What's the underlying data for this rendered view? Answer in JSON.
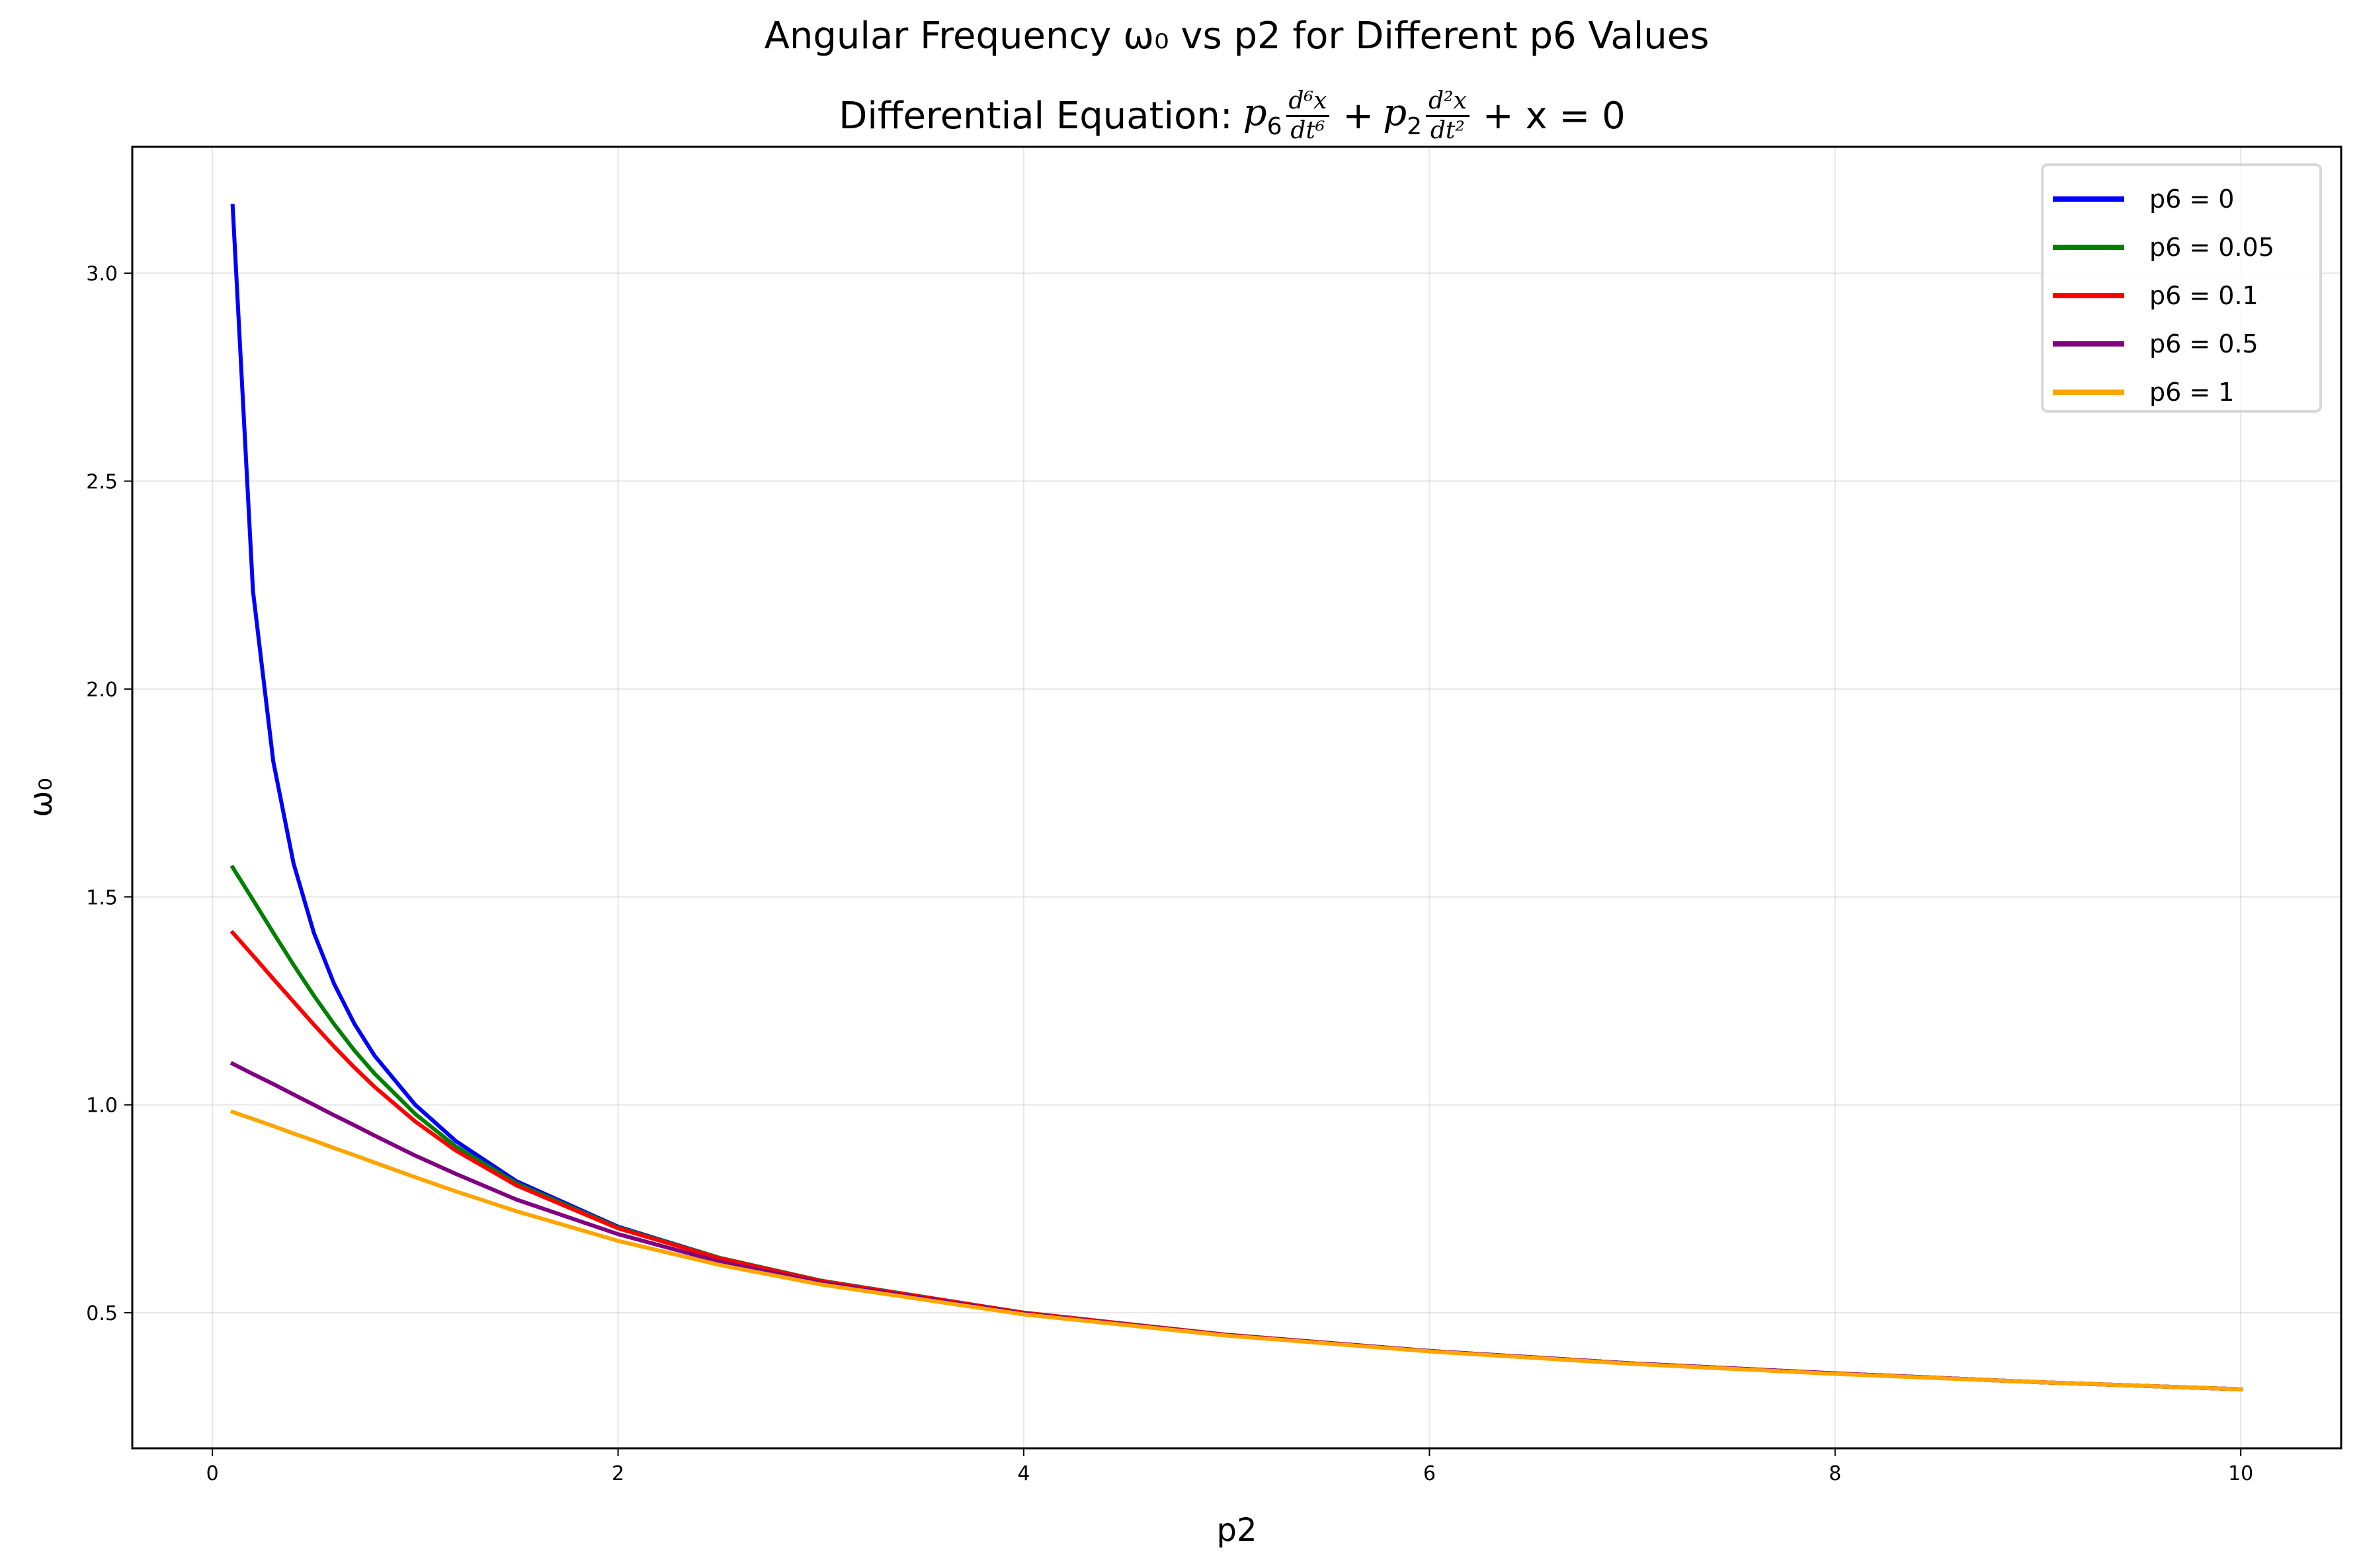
{
  "chart_data": {
    "type": "line",
    "title": "Angular Frequency ω₀ vs p2 for Different p6 Values",
    "subtitle_prefix": "Differential Equation:",
    "equation": {
      "coef1": "p",
      "coef1_sub": "6",
      "num1": "d⁶x",
      "den1": "dt⁶",
      "plus1": "+",
      "coef2": "p",
      "coef2_sub": "2",
      "num2": "d²x",
      "den2": "dt²",
      "tail": "+ x = 0"
    },
    "xlabel": "p2",
    "ylabel": "ω₀",
    "xlim": [
      -0.395,
      10.495
    ],
    "ylim": [
      0.174,
      3.304
    ],
    "xticks": [
      0,
      2,
      4,
      6,
      8,
      10
    ],
    "xtick_labels": [
      "0",
      "2",
      "4",
      "6",
      "8",
      "10"
    ],
    "yticks": [
      0.5,
      1.0,
      1.5,
      2.0,
      2.5,
      3.0
    ],
    "ytick_labels": [
      "0.5",
      "1.0",
      "1.5",
      "2.0",
      "2.5",
      "3.0"
    ],
    "grid": true,
    "legend_position": "top-right",
    "x": [
      0.1,
      0.2,
      0.3,
      0.4,
      0.5,
      0.6,
      0.7,
      0.8,
      1.0,
      1.2,
      1.5,
      2,
      2.5,
      3,
      4,
      5,
      6,
      7,
      8,
      9,
      10
    ],
    "series": [
      {
        "name": "p6 = 0",
        "color": "#0000ff",
        "values": [
          3.162,
          2.236,
          1.826,
          1.581,
          1.414,
          1.291,
          1.195,
          1.118,
          1.0,
          0.913,
          0.816,
          0.707,
          0.632,
          0.577,
          0.5,
          0.447,
          0.408,
          0.378,
          0.354,
          0.333,
          0.316
        ]
      },
      {
        "name": "p6 = 0.05",
        "color": "#008000",
        "values": [
          1.571,
          1.493,
          1.414,
          1.337,
          1.263,
          1.194,
          1.131,
          1.075,
          0.978,
          0.9,
          0.811,
          0.705,
          0.632,
          0.577,
          0.5,
          0.447,
          0.408,
          0.378,
          0.354,
          0.333,
          0.316
        ]
      },
      {
        "name": "p6 = 0.1",
        "color": "#ff0000",
        "values": [
          1.414,
          1.359,
          1.303,
          1.248,
          1.193,
          1.14,
          1.09,
          1.043,
          0.96,
          0.89,
          0.806,
          0.703,
          0.631,
          0.576,
          0.5,
          0.447,
          0.408,
          0.378,
          0.354,
          0.333,
          0.316
        ]
      },
      {
        "name": "p6 = 0.5",
        "color": "#800080",
        "values": [
          1.099,
          1.074,
          1.05,
          1.025,
          1.0,
          0.975,
          0.951,
          0.926,
          0.878,
          0.834,
          0.772,
          0.689,
          0.623,
          0.572,
          0.498,
          0.446,
          0.408,
          0.378,
          0.354,
          0.333,
          0.316
        ]
      },
      {
        "name": "p6 = 1",
        "color": "#ffa500",
        "values": [
          0.983,
          0.966,
          0.949,
          0.931,
          0.914,
          0.896,
          0.879,
          0.861,
          0.826,
          0.792,
          0.744,
          0.673,
          0.615,
          0.568,
          0.496,
          0.445,
          0.407,
          0.377,
          0.353,
          0.333,
          0.316
        ]
      }
    ]
  }
}
